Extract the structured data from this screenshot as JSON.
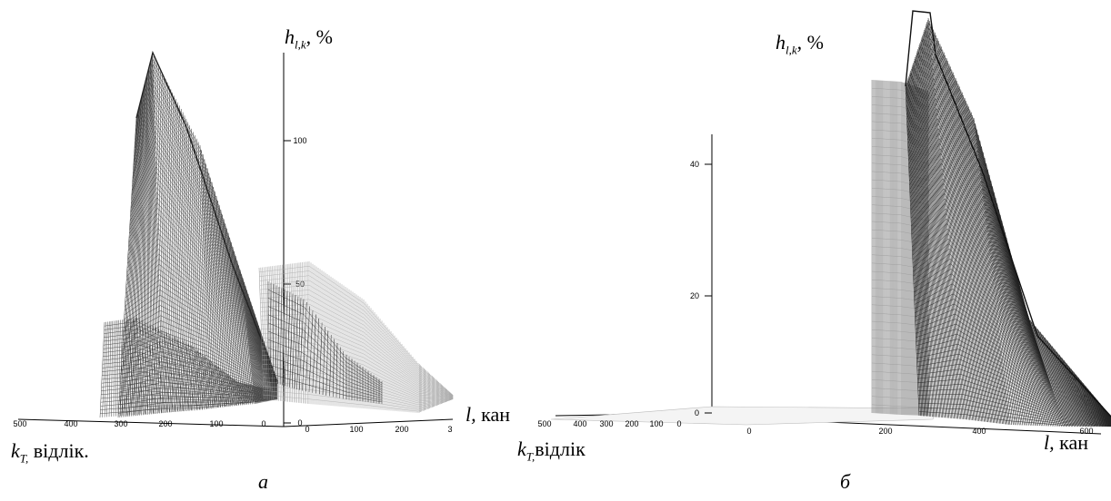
{
  "chart_data": [
    {
      "type": "surface",
      "panel_caption": "а",
      "zlabel_main": "h",
      "zlabel_sub": "l,k",
      "zlabel_unit": ", %",
      "xlabel_main": "l,",
      "xlabel_unit": " кан",
      "ylabel_main": "k",
      "ylabel_sub": "T,",
      "ylabel_unit": " відлік.",
      "z_ticks": [
        "100",
        "50",
        "0"
      ],
      "x_ticks": [
        "0",
        "100",
        "200",
        "3"
      ],
      "y_ticks": [
        "500",
        "400",
        "300",
        "200",
        "100",
        "0"
      ],
      "peaks": [
        {
          "name": "",
          "l": 180,
          "k": 250,
          "h": 140
        },
        {
          "name": "",
          "l": 100,
          "k": 200,
          "h": 50
        },
        {
          "name": "",
          "l": 250,
          "k": 300,
          "h": 25
        }
      ]
    },
    {
      "type": "surface",
      "panel_caption": "б",
      "zlabel_main": "h",
      "zlabel_sub": "l,k",
      "zlabel_unit": ", %",
      "xlabel_main": "l,",
      "xlabel_unit": " кан",
      "ylabel_main": "k",
      "ylabel_sub": "T,",
      "ylabel_unit": "відлік",
      "z_ticks": [
        "40",
        "20",
        "0"
      ],
      "x_ticks": [
        "0",
        "200",
        "400",
        "600"
      ],
      "y_ticks": [
        "500",
        "400",
        "300",
        "200",
        "100",
        "0"
      ],
      "peaks": [
        {
          "name": "",
          "l": 420,
          "k": 0,
          "h": 55
        }
      ]
    }
  ]
}
